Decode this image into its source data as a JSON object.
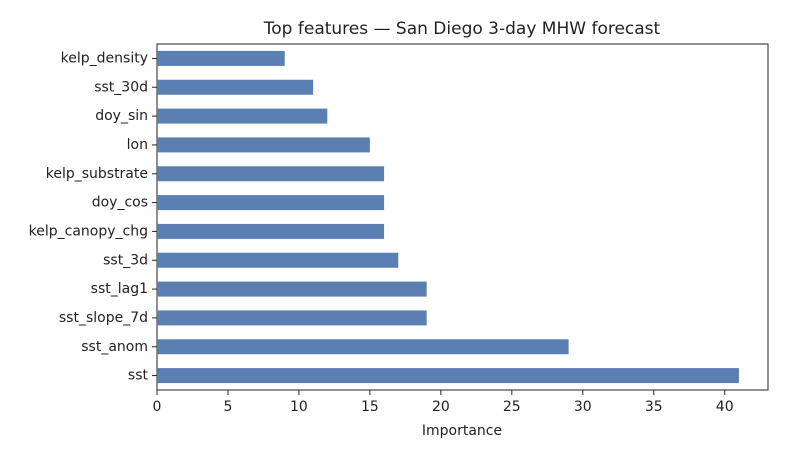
{
  "chart_data": {
    "type": "barh",
    "title": "Top features — San Diego 3-day MHW forecast",
    "xlabel": "Importance",
    "categories": [
      "kelp_density",
      "sst_30d",
      "doy_sin",
      "lon",
      "kelp_substrate",
      "doy_cos",
      "kelp_canopy_chg",
      "sst_3d",
      "sst_lag1",
      "sst_slope_7d",
      "sst_anom",
      "sst"
    ],
    "values": [
      9,
      11,
      12,
      15,
      16,
      16,
      16,
      17,
      19,
      19,
      29,
      41
    ],
    "color": "#5a7fb3",
    "xlim": [
      0,
      43.05
    ],
    "xticks": [
      0,
      5,
      10,
      15,
      20,
      25,
      30,
      35,
      40
    ]
  }
}
